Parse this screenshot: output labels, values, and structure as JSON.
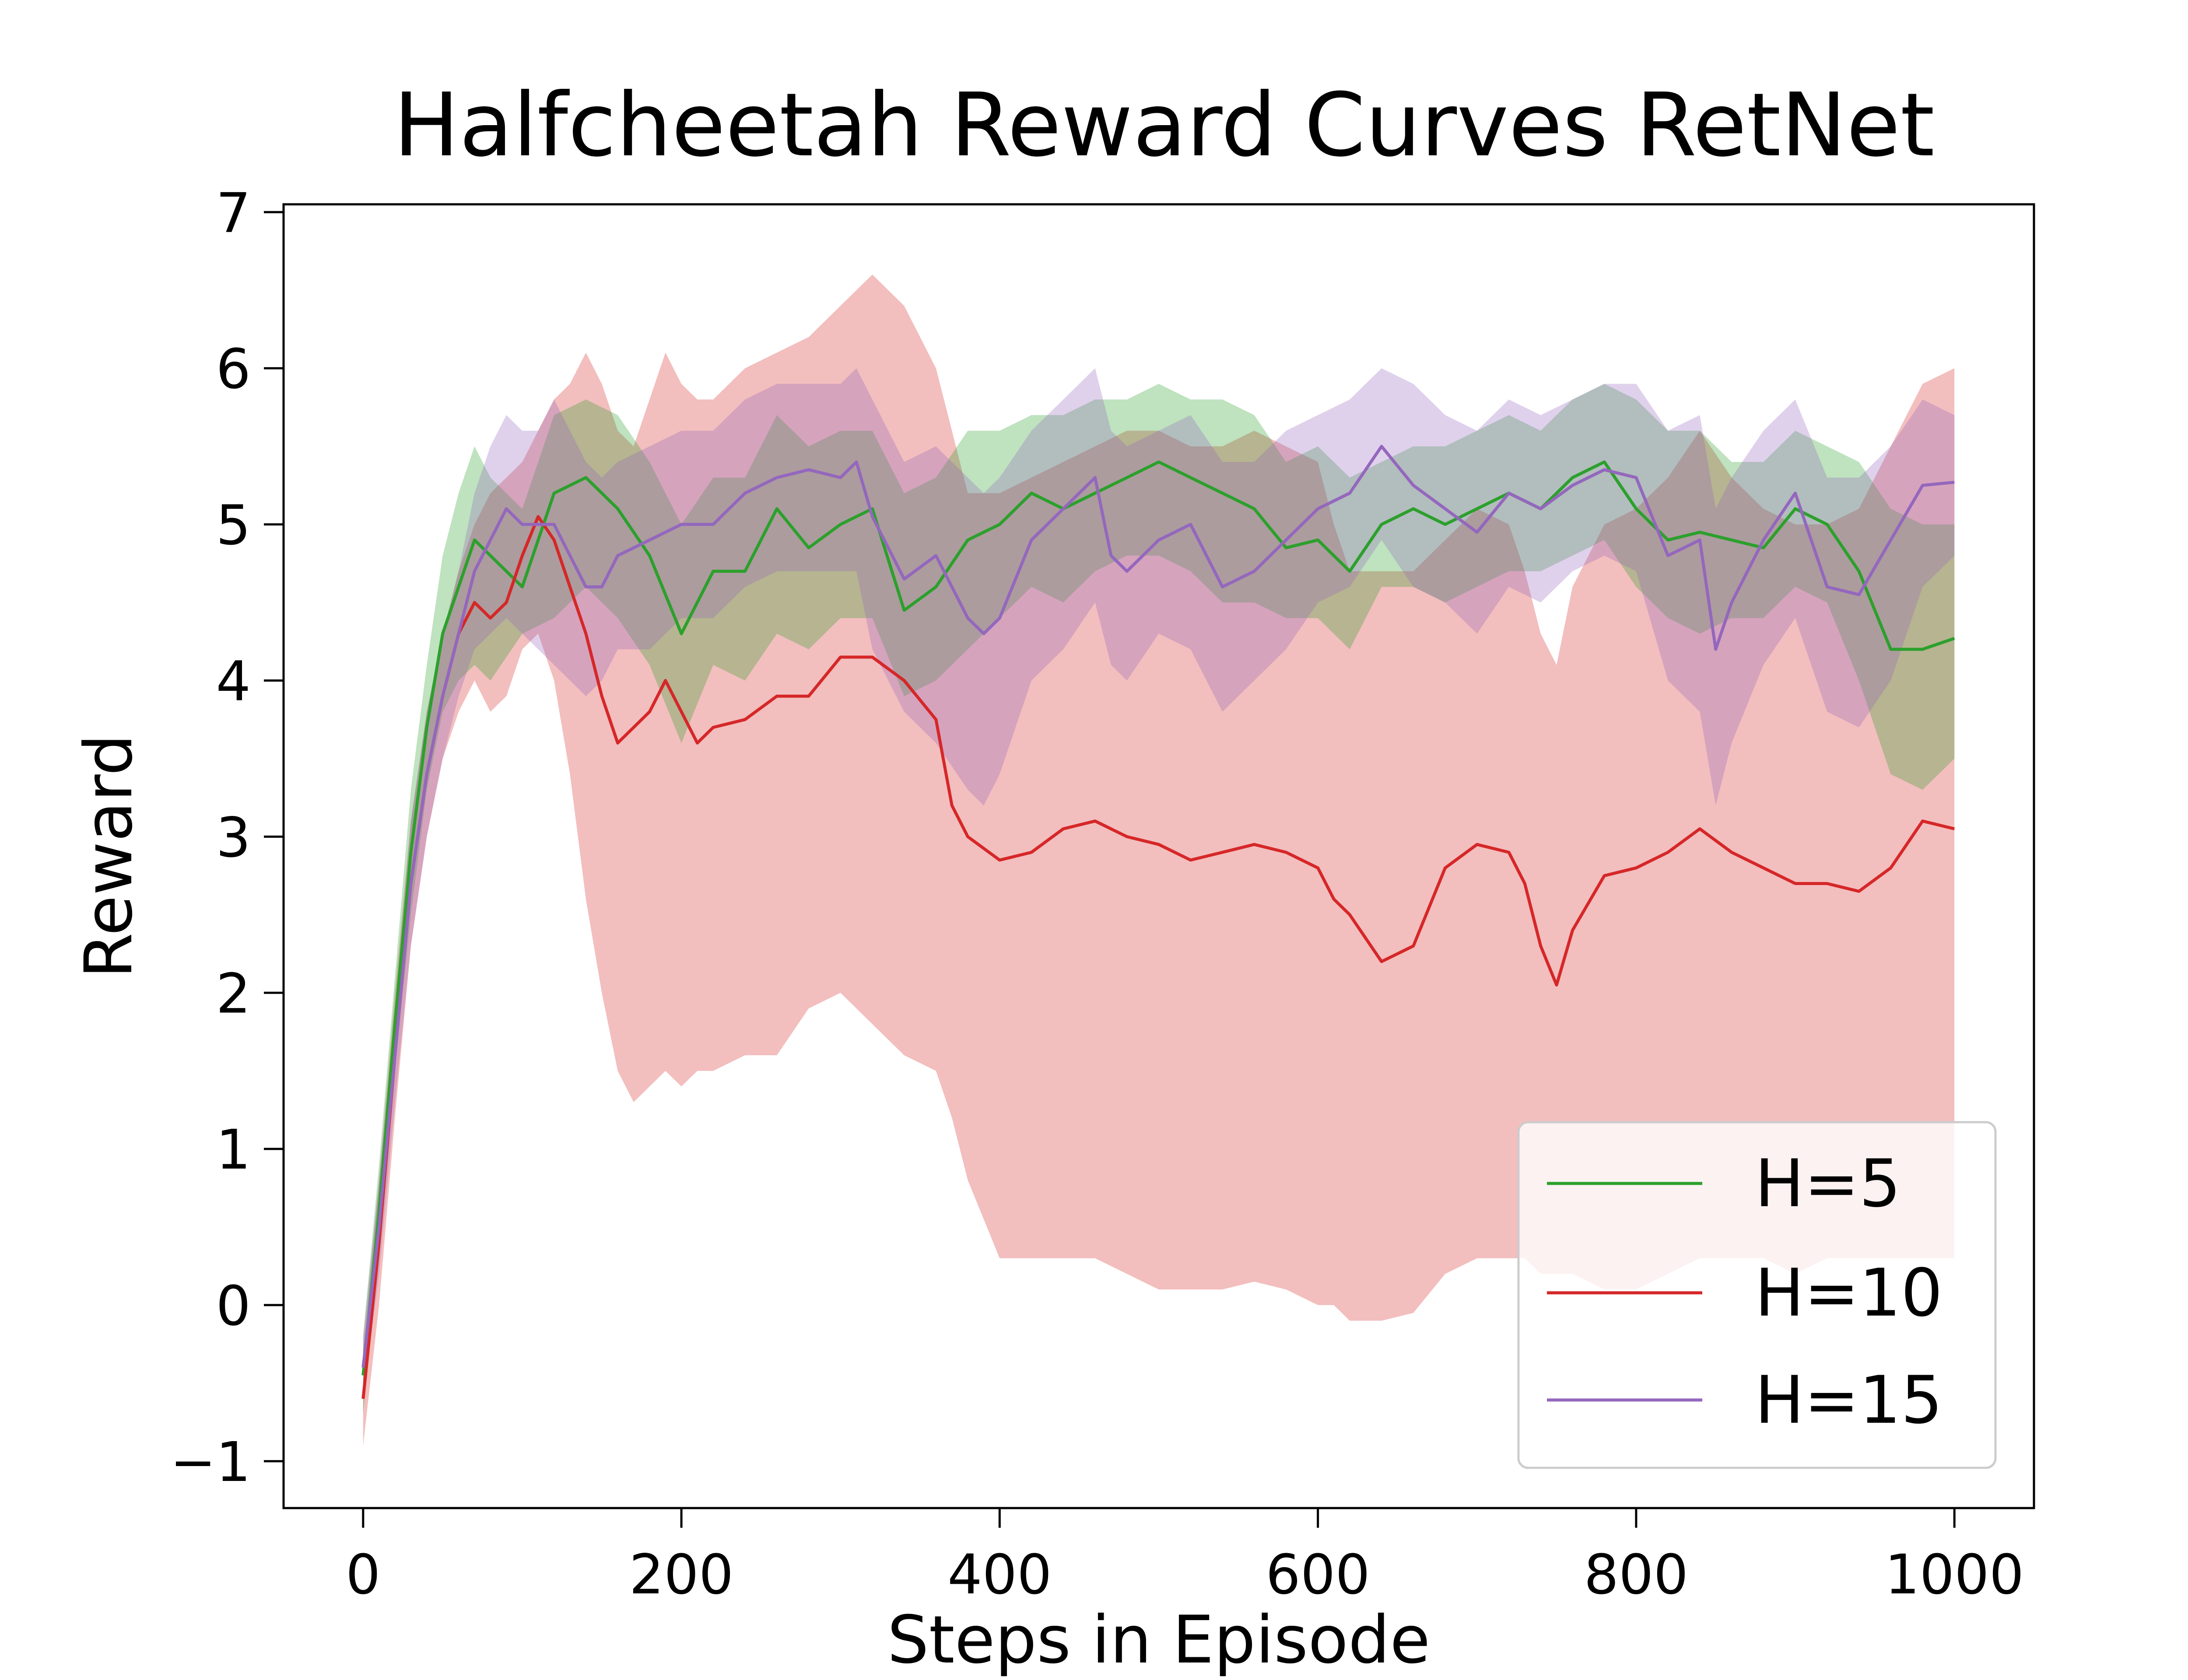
{
  "chart_data": {
    "type": "line",
    "title": "Halfcheetah Reward Curves RetNet",
    "xlabel": "Steps in Episode",
    "ylabel": "Reward",
    "xlim": [
      -50,
      1050
    ],
    "ylim": [
      -1.3,
      7.05
    ],
    "x_ticks": [
      0,
      200,
      400,
      600,
      800,
      1000
    ],
    "y_ticks": [
      -1,
      0,
      1,
      2,
      3,
      4,
      5,
      6,
      7
    ],
    "x_tick_labels": [
      "0",
      "200",
      "400",
      "600",
      "800",
      "1000"
    ],
    "y_tick_labels": [
      "−1",
      "0",
      "1",
      "2",
      "3",
      "4",
      "5",
      "6",
      "7"
    ],
    "grid": false,
    "legend_position": "lower right",
    "series": [
      {
        "name": "H=5",
        "color": "#2ca02c",
        "x": [
          0,
          10,
          20,
          30,
          40,
          50,
          60,
          70,
          80,
          100,
          120,
          140,
          160,
          180,
          200,
          220,
          240,
          260,
          280,
          300,
          320,
          340,
          360,
          380,
          400,
          420,
          440,
          460,
          480,
          500,
          520,
          540,
          560,
          580,
          600,
          620,
          640,
          660,
          680,
          700,
          720,
          740,
          760,
          780,
          800,
          820,
          840,
          860,
          880,
          900,
          920,
          940,
          960,
          980,
          1000
        ],
        "y": [
          -0.45,
          0.6,
          1.8,
          2.9,
          3.7,
          4.3,
          4.6,
          4.9,
          4.8,
          4.6,
          5.2,
          5.3,
          5.1,
          4.8,
          4.3,
          4.7,
          4.7,
          5.1,
          4.85,
          5.0,
          5.1,
          4.45,
          4.6,
          4.9,
          5.0,
          5.2,
          5.1,
          5.2,
          5.3,
          5.4,
          5.3,
          5.2,
          5.1,
          4.85,
          4.9,
          4.7,
          5.0,
          5.1,
          5.0,
          5.1,
          5.2,
          5.1,
          5.3,
          5.4,
          5.1,
          4.9,
          4.95,
          4.9,
          4.85,
          5.1,
          5.0,
          4.7,
          4.2,
          4.2,
          4.27
        ],
        "lower": [
          -0.7,
          0.3,
          1.5,
          2.5,
          3.3,
          3.8,
          4.0,
          4.1,
          4.0,
          4.3,
          4.4,
          4.6,
          4.4,
          4.1,
          3.6,
          4.1,
          4.0,
          4.3,
          4.2,
          4.4,
          4.4,
          3.9,
          4.0,
          4.2,
          4.4,
          4.6,
          4.5,
          4.7,
          4.8,
          4.8,
          4.7,
          4.5,
          4.5,
          4.4,
          4.4,
          4.2,
          4.6,
          4.6,
          4.5,
          4.6,
          4.7,
          4.7,
          4.8,
          4.9,
          4.6,
          4.4,
          4.3,
          4.4,
          4.4,
          4.6,
          4.5,
          4.0,
          3.4,
          3.3,
          3.5
        ],
        "upper": [
          -0.2,
          0.9,
          2.1,
          3.3,
          4.1,
          4.8,
          5.2,
          5.5,
          5.3,
          5.1,
          5.7,
          5.8,
          5.7,
          5.4,
          5.0,
          5.3,
          5.3,
          5.7,
          5.5,
          5.6,
          5.6,
          5.2,
          5.3,
          5.6,
          5.6,
          5.7,
          5.7,
          5.8,
          5.8,
          5.9,
          5.8,
          5.8,
          5.7,
          5.4,
          5.5,
          5.3,
          5.4,
          5.5,
          5.5,
          5.6,
          5.7,
          5.6,
          5.8,
          5.9,
          5.8,
          5.6,
          5.6,
          5.4,
          5.4,
          5.6,
          5.5,
          5.4,
          5.1,
          5.0,
          5.0
        ]
      },
      {
        "name": "H=10",
        "color": "#d62728",
        "x": [
          0,
          10,
          20,
          30,
          40,
          50,
          60,
          70,
          80,
          90,
          100,
          110,
          120,
          130,
          140,
          150,
          160,
          170,
          180,
          190,
          200,
          210,
          220,
          240,
          260,
          280,
          300,
          320,
          340,
          360,
          370,
          380,
          400,
          420,
          440,
          460,
          480,
          500,
          520,
          540,
          560,
          580,
          600,
          610,
          620,
          640,
          660,
          680,
          700,
          720,
          730,
          740,
          750,
          760,
          780,
          800,
          820,
          840,
          860,
          880,
          900,
          920,
          940,
          960,
          980,
          1000
        ],
        "y": [
          -0.6,
          0.4,
          1.6,
          2.7,
          3.4,
          3.9,
          4.3,
          4.5,
          4.4,
          4.5,
          4.8,
          5.05,
          4.9,
          4.6,
          4.3,
          3.9,
          3.6,
          3.7,
          3.8,
          4.0,
          3.8,
          3.6,
          3.7,
          3.75,
          3.9,
          3.9,
          4.15,
          4.15,
          4.0,
          3.75,
          3.2,
          3.0,
          2.85,
          2.9,
          3.05,
          3.1,
          3.0,
          2.95,
          2.85,
          2.9,
          2.95,
          2.9,
          2.8,
          2.6,
          2.5,
          2.2,
          2.3,
          2.8,
          2.95,
          2.9,
          2.7,
          2.3,
          2.05,
          2.4,
          2.75,
          2.8,
          2.9,
          3.05,
          2.9,
          2.8,
          2.7,
          2.7,
          2.65,
          2.8,
          3.1,
          3.05
        ],
        "lower": [
          -0.9,
          0.0,
          1.2,
          2.3,
          3.0,
          3.5,
          3.8,
          4.0,
          3.8,
          3.9,
          4.2,
          4.3,
          4.0,
          3.4,
          2.6,
          2.0,
          1.5,
          1.3,
          1.4,
          1.5,
          1.4,
          1.5,
          1.5,
          1.6,
          1.6,
          1.9,
          2.0,
          1.8,
          1.6,
          1.5,
          1.2,
          0.8,
          0.3,
          0.3,
          0.3,
          0.3,
          0.2,
          0.1,
          0.1,
          0.1,
          0.15,
          0.1,
          0.0,
          0.0,
          -0.1,
          -0.1,
          -0.05,
          0.2,
          0.3,
          0.3,
          0.3,
          0.2,
          0.2,
          0.2,
          0.1,
          0.1,
          0.2,
          0.3,
          0.3,
          0.3,
          0.2,
          0.3,
          0.3,
          0.3,
          0.3,
          0.3
        ],
        "upper": [
          -0.3,
          0.8,
          2.0,
          3.1,
          3.8,
          4.3,
          4.7,
          5.0,
          5.2,
          5.3,
          5.4,
          5.6,
          5.8,
          5.9,
          6.1,
          5.9,
          5.6,
          5.5,
          5.8,
          6.1,
          5.9,
          5.8,
          5.8,
          6.0,
          6.1,
          6.2,
          6.4,
          6.6,
          6.4,
          6.0,
          5.6,
          5.2,
          5.2,
          5.3,
          5.4,
          5.5,
          5.6,
          5.6,
          5.5,
          5.5,
          5.6,
          5.5,
          5.4,
          5.0,
          4.7,
          4.7,
          4.7,
          4.9,
          5.1,
          5.0,
          4.7,
          4.3,
          4.1,
          4.6,
          5.0,
          5.1,
          5.3,
          5.6,
          5.3,
          5.1,
          5.0,
          5.0,
          5.1,
          5.5,
          5.9,
          6.0
        ]
      },
      {
        "name": "H=15",
        "color": "#9467bd",
        "x": [
          0,
          10,
          20,
          30,
          40,
          50,
          60,
          70,
          80,
          90,
          100,
          110,
          120,
          130,
          140,
          150,
          160,
          180,
          200,
          220,
          240,
          260,
          280,
          300,
          310,
          320,
          340,
          360,
          380,
          390,
          400,
          420,
          440,
          460,
          470,
          480,
          500,
          520,
          540,
          560,
          580,
          600,
          620,
          640,
          660,
          680,
          700,
          720,
          740,
          760,
          780,
          800,
          820,
          840,
          850,
          860,
          880,
          900,
          920,
          940,
          960,
          980,
          1000
        ],
        "y": [
          -0.4,
          0.5,
          1.6,
          2.7,
          3.4,
          3.9,
          4.3,
          4.7,
          4.9,
          5.1,
          5.0,
          5.0,
          5.0,
          4.8,
          4.6,
          4.6,
          4.8,
          4.9,
          5.0,
          5.0,
          5.2,
          5.3,
          5.35,
          5.3,
          5.4,
          5.05,
          4.65,
          4.8,
          4.4,
          4.3,
          4.4,
          4.9,
          5.1,
          5.3,
          4.8,
          4.7,
          4.9,
          5.0,
          4.6,
          4.7,
          4.9,
          5.1,
          5.2,
          5.5,
          5.25,
          5.1,
          4.95,
          5.2,
          5.1,
          5.25,
          5.35,
          5.3,
          4.8,
          4.9,
          4.2,
          4.5,
          4.9,
          5.2,
          4.6,
          4.55,
          4.9,
          5.25,
          5.27
        ],
        "lower": [
          -0.6,
          0.2,
          1.3,
          2.3,
          3.0,
          3.5,
          3.9,
          4.2,
          4.3,
          4.4,
          4.3,
          4.2,
          4.1,
          4.0,
          3.9,
          4.0,
          4.2,
          4.2,
          4.4,
          4.4,
          4.6,
          4.7,
          4.7,
          4.7,
          4.7,
          4.2,
          3.8,
          3.6,
          3.3,
          3.2,
          3.4,
          4.0,
          4.2,
          4.5,
          4.1,
          4.0,
          4.3,
          4.2,
          3.8,
          4.0,
          4.2,
          4.5,
          4.6,
          4.9,
          4.6,
          4.5,
          4.3,
          4.6,
          4.5,
          4.7,
          4.8,
          4.7,
          4.0,
          3.8,
          3.2,
          3.6,
          4.1,
          4.4,
          3.8,
          3.7,
          4.0,
          4.6,
          4.8
        ],
        "upper": [
          -0.2,
          0.8,
          1.9,
          3.1,
          3.8,
          4.3,
          4.7,
          5.2,
          5.5,
          5.7,
          5.6,
          5.6,
          5.8,
          5.6,
          5.4,
          5.3,
          5.4,
          5.5,
          5.6,
          5.6,
          5.8,
          5.9,
          5.9,
          5.9,
          6.0,
          5.8,
          5.4,
          5.5,
          5.3,
          5.2,
          5.3,
          5.6,
          5.8,
          6.0,
          5.6,
          5.5,
          5.6,
          5.7,
          5.4,
          5.4,
          5.6,
          5.7,
          5.8,
          6.0,
          5.9,
          5.7,
          5.6,
          5.8,
          5.7,
          5.8,
          5.9,
          5.9,
          5.6,
          5.7,
          5.1,
          5.3,
          5.6,
          5.8,
          5.3,
          5.3,
          5.5,
          5.8,
          5.7
        ]
      }
    ]
  }
}
